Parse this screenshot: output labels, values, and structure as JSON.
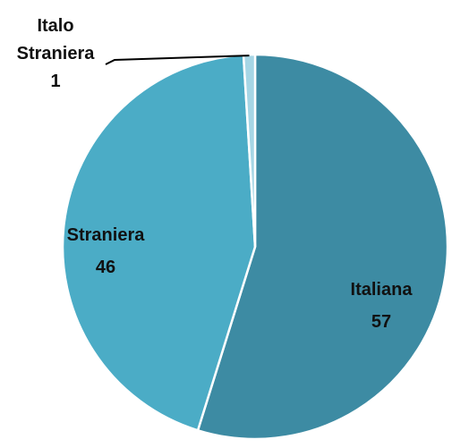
{
  "chart_data": {
    "type": "pie",
    "slices": [
      {
        "label": "Italiana",
        "value": 57,
        "color": "#3d8ba3"
      },
      {
        "label": "Straniera",
        "value": 46,
        "color": "#4bacc6"
      },
      {
        "label": "Italo Straniera",
        "label_lines": [
          "Italo",
          "Straniera"
        ],
        "value": 1,
        "color": "#a6d6e5"
      }
    ],
    "start_angle_deg": 0,
    "direction": "clockwise",
    "legend": "none"
  }
}
